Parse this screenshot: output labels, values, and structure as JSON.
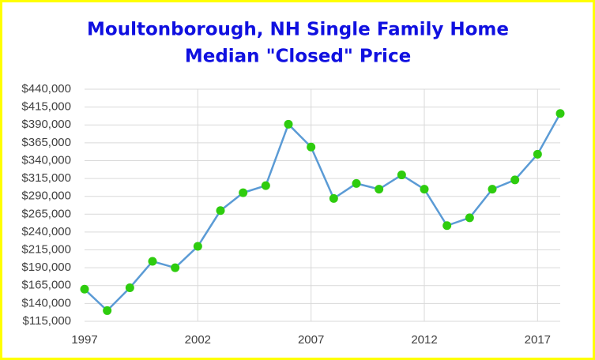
{
  "chart_data": {
    "type": "line",
    "title": [
      "Moultonborough, NH Single Family Home",
      "Median \"Closed\" Price"
    ],
    "x": [
      1997,
      1998,
      1999,
      2000,
      2001,
      2002,
      2003,
      2004,
      2005,
      2006,
      2007,
      2008,
      2009,
      2010,
      2011,
      2012,
      2013,
      2014,
      2015,
      2016,
      2017,
      2018
    ],
    "values": [
      160000,
      130000,
      162000,
      199000,
      190000,
      220000,
      270000,
      295000,
      305000,
      391000,
      359000,
      287000,
      308000,
      300000,
      320000,
      300000,
      249000,
      260000,
      300000,
      313000,
      349000,
      406000
    ],
    "color": "#5b9bd5",
    "marker_color": "#2ecc0e",
    "xlim": [
      1997,
      2018
    ],
    "xticks": [
      1997,
      2002,
      2007,
      2012,
      2017
    ],
    "ylim": [
      115000,
      440000
    ],
    "yticks": [
      {
        "value": 115000,
        "label": "$115,000"
      },
      {
        "value": 140000,
        "label": "$140,000"
      },
      {
        "value": 165000,
        "label": "$165,000"
      },
      {
        "value": 190000,
        "label": "$190,000"
      },
      {
        "value": 215000,
        "label": "$215,000"
      },
      {
        "value": 240000,
        "label": "$240,000"
      },
      {
        "value": 265000,
        "label": "$265,000"
      },
      {
        "value": 290000,
        "label": "$290,000"
      },
      {
        "value": 315000,
        "label": "$315,000"
      },
      {
        "value": 340000,
        "label": "$340,000"
      },
      {
        "value": 365000,
        "label": "$365,000"
      },
      {
        "value": 390000,
        "label": "$390,000"
      },
      {
        "value": 415000,
        "label": "$415,000"
      },
      {
        "value": 440000,
        "label": "$440,000"
      }
    ],
    "grid": true
  }
}
